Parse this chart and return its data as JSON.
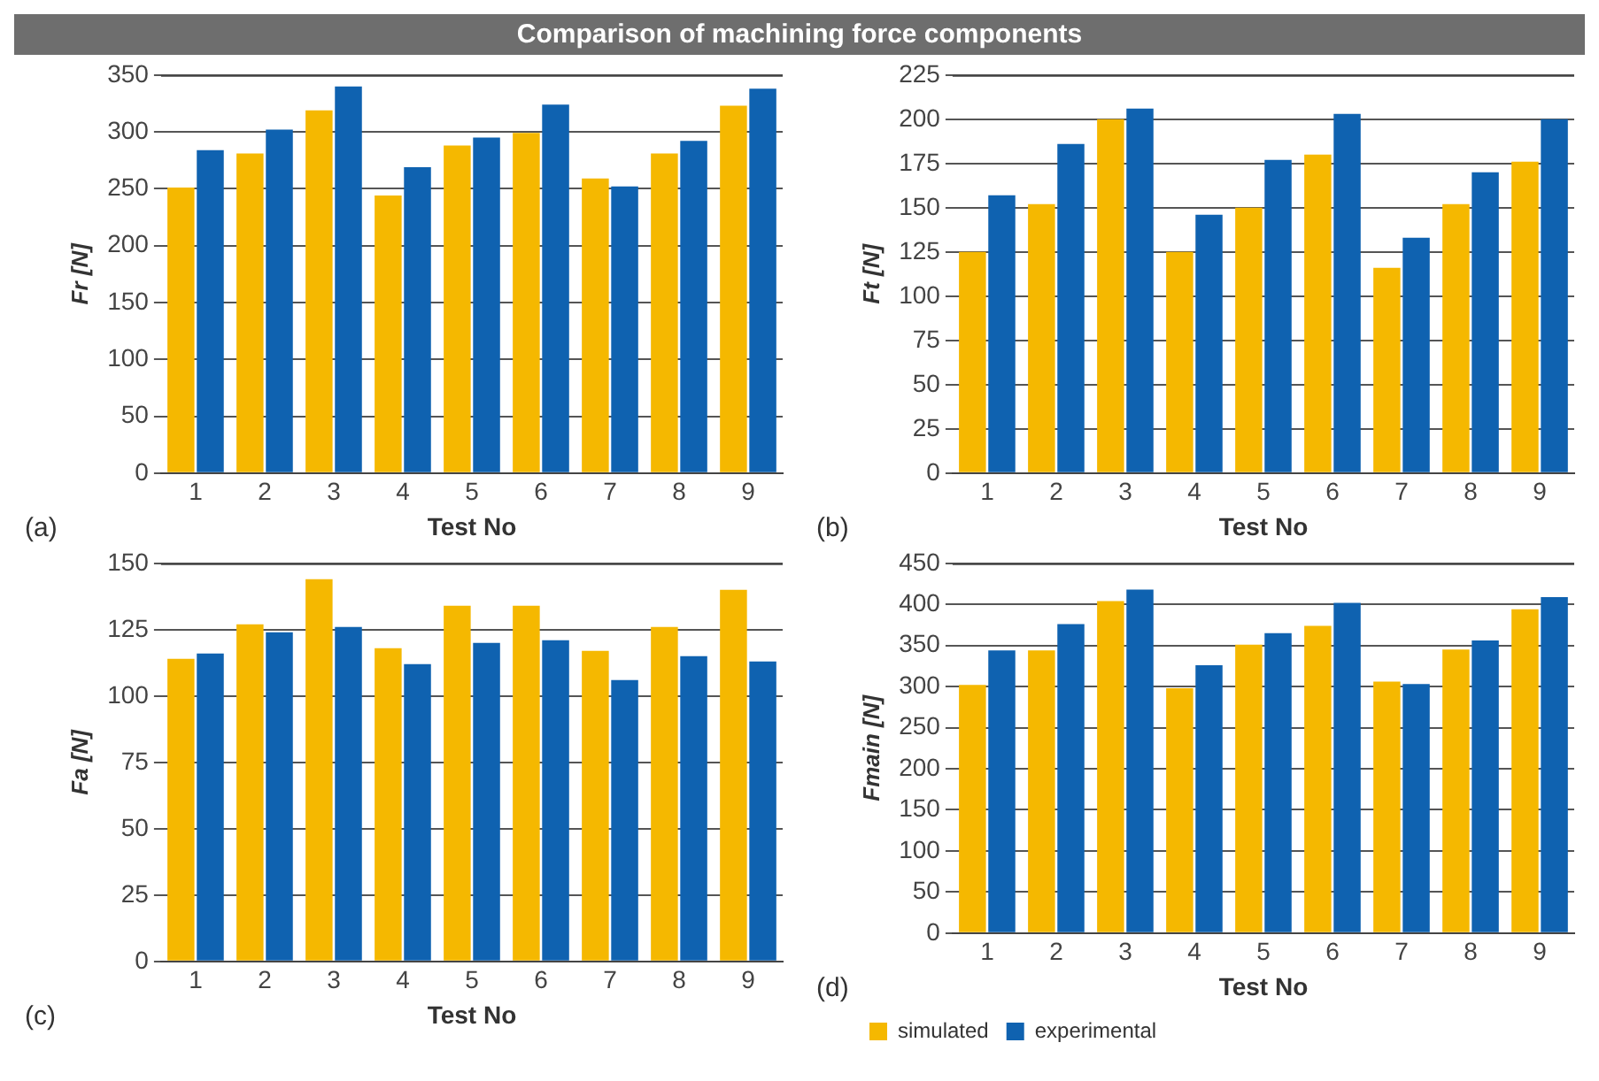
{
  "chart_data": [
    {
      "type": "bar",
      "title": "Comparison of machining force components",
      "xlabel": "Test No",
      "ylabel": "Fr [N]",
      "annotations": [
        "(a)"
      ],
      "categories": [
        "1",
        "2",
        "3",
        "4",
        "5",
        "6",
        "7",
        "8",
        "9"
      ],
      "series": [
        {
          "color": "#f5b800",
          "values": [
            251,
            281,
            319,
            244,
            288,
            299,
            259,
            281,
            323
          ]
        },
        {
          "color": "#0f62b0",
          "values": [
            284,
            302,
            340,
            269,
            295,
            324,
            252,
            292,
            338
          ]
        }
      ],
      "ylim": [
        0,
        350
      ],
      "yticks": [
        0,
        50,
        100,
        150,
        200,
        250,
        300,
        350
      ],
      "grid": "y",
      "legend": false
    },
    {
      "type": "bar",
      "xlabel": "Test No",
      "ylabel": "Ft [N]",
      "annotations": [
        "(b)"
      ],
      "categories": [
        "1",
        "2",
        "3",
        "4",
        "5",
        "6",
        "7",
        "8",
        "9"
      ],
      "series": [
        {
          "color": "#f5b800",
          "values": [
            125,
            152,
            200,
            125,
            150,
            180,
            116,
            152,
            176
          ]
        },
        {
          "color": "#0f62b0",
          "values": [
            157,
            186,
            206,
            146,
            177,
            203,
            133,
            170,
            200
          ]
        }
      ],
      "ylim": [
        0,
        225
      ],
      "yticks": [
        0,
        25,
        50,
        75,
        100,
        125,
        150,
        175,
        200,
        225
      ],
      "grid": "y",
      "legend": false
    },
    {
      "type": "bar",
      "xlabel": "Test No",
      "ylabel": "Fa [N]",
      "annotations": [
        "(c)"
      ],
      "categories": [
        "1",
        "2",
        "3",
        "4",
        "5",
        "6",
        "7",
        "8",
        "9"
      ],
      "series": [
        {
          "color": "#f5b800",
          "values": [
            114,
            127,
            144,
            118,
            134,
            134,
            117,
            126,
            140
          ]
        },
        {
          "color": "#0f62b0",
          "values": [
            116,
            124,
            126,
            112,
            120,
            121,
            106,
            115,
            113
          ]
        }
      ],
      "ylim": [
        0,
        150
      ],
      "yticks": [
        0,
        25,
        50,
        75,
        100,
        125,
        150
      ],
      "grid": "y",
      "legend": false
    },
    {
      "type": "bar",
      "xlabel": "Test No",
      "ylabel": "Fmain [N]",
      "annotations": [
        "(d)"
      ],
      "categories": [
        "1",
        "2",
        "3",
        "4",
        "5",
        "6",
        "7",
        "8",
        "9"
      ],
      "series": [
        {
          "name": "simulated",
          "color": "#f5b800",
          "values": [
            302,
            344,
            404,
            298,
            351,
            374,
            306,
            345,
            394
          ]
        },
        {
          "name": "experimental",
          "color": "#0f62b0",
          "values": [
            344,
            376,
            418,
            326,
            365,
            402,
            303,
            356,
            409
          ]
        }
      ],
      "ylim": [
        0,
        450
      ],
      "yticks": [
        0,
        50,
        100,
        150,
        200,
        250,
        300,
        350,
        400,
        450
      ],
      "grid": "y",
      "legend": "bottom left"
    }
  ]
}
